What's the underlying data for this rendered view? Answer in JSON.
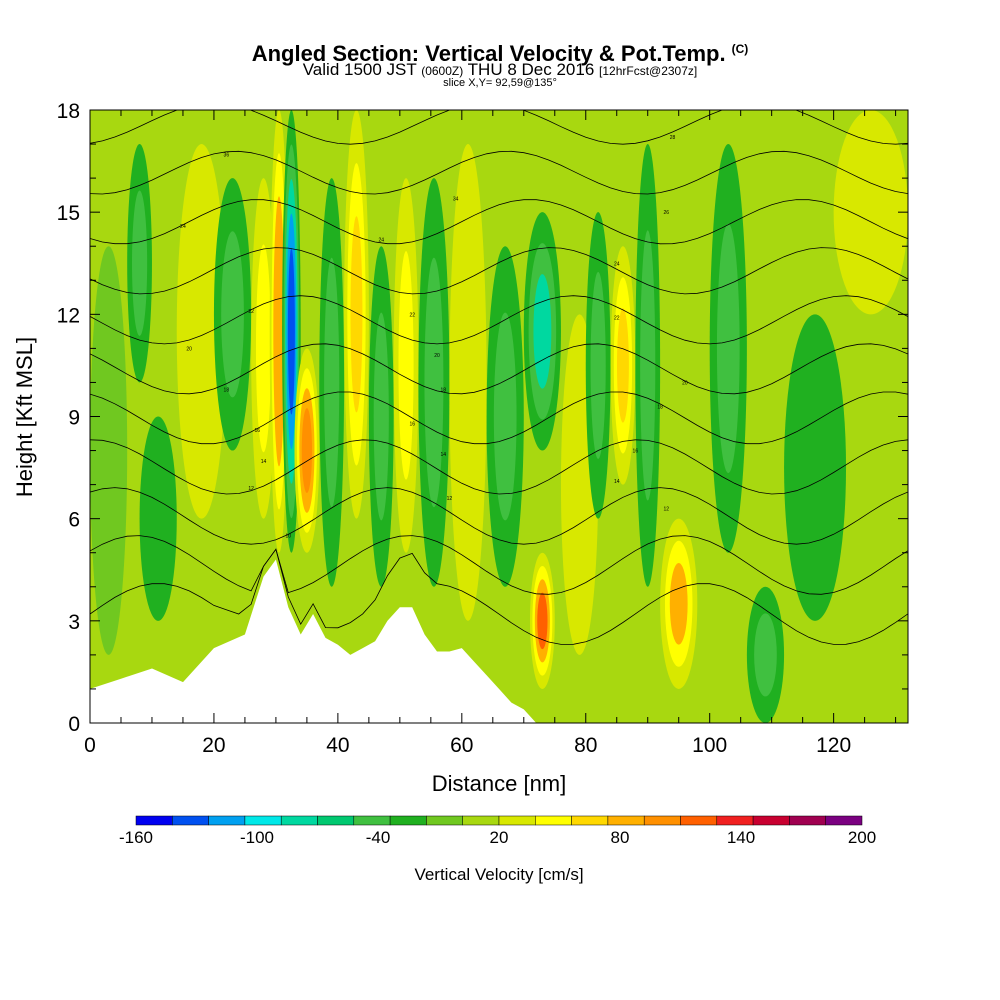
{
  "title": {
    "main": "Angled Section: Vertical Velocity & Pot.Temp.",
    "main_sup": "(C)",
    "valid_a": "Valid 1500 JST",
    "valid_b": "(0600Z)",
    "valid_c": "THU 8 Dec 2016",
    "valid_d": "[12hrFcst@2307z]",
    "slice": "slice X,Y= 92,59@135°"
  },
  "chart_data": {
    "type": "heatmap",
    "xlabel": "Distance [nm]",
    "ylabel": "Height [Kft MSL]",
    "xlim": [
      0,
      132
    ],
    "ylim": [
      0,
      18
    ],
    "xticks": [
      0,
      20,
      40,
      60,
      80,
      100,
      120
    ],
    "yticks": [
      0,
      3,
      6,
      9,
      12,
      15,
      18
    ],
    "colorbar": {
      "title": "Vertical Velocity [cm/s]",
      "labels": [
        "-160",
        "-100",
        "-40",
        "20",
        "80",
        "140",
        "200"
      ],
      "label_values": [
        -160,
        -100,
        -40,
        20,
        80,
        140,
        200
      ],
      "range": [
        -160,
        200
      ],
      "colors": [
        "#0000f0",
        "#0050f0",
        "#00a0f0",
        "#00e8e8",
        "#00d8a0",
        "#00c870",
        "#40c040",
        "#20b020",
        "#70c820",
        "#a8d810",
        "#d8e800",
        "#ffff00",
        "#ffd800",
        "#ffb000",
        "#ff9000",
        "#ff6000",
        "#f02020",
        "#c80030",
        "#a00050",
        "#7a0080"
      ]
    },
    "terrain": {
      "x": [
        0,
        5,
        10,
        15,
        20,
        25,
        28,
        30,
        32,
        34,
        36,
        38,
        40,
        42,
        44,
        46,
        48,
        50,
        52,
        54,
        56,
        58,
        60,
        62,
        64,
        66,
        68,
        70,
        72
      ],
      "height": [
        1.0,
        1.3,
        1.6,
        1.2,
        2.2,
        2.6,
        4.3,
        4.8,
        3.4,
        2.6,
        3.2,
        2.5,
        2.3,
        2.0,
        2.2,
        2.4,
        3.0,
        3.4,
        3.4,
        2.6,
        2.1,
        2.1,
        2.2,
        1.8,
        1.4,
        1.0,
        0.6,
        0.4,
        0.0
      ]
    },
    "wvel_cells": [
      {
        "x": [
          0,
          6
        ],
        "y": [
          2,
          14
        ],
        "w": -10
      },
      {
        "x": [
          6,
          10
        ],
        "y": [
          10,
          17
        ],
        "w": -40
      },
      {
        "x": [
          8,
          14
        ],
        "y": [
          3,
          9
        ],
        "w": -30
      },
      {
        "x": [
          14,
          22
        ],
        "y": [
          6,
          17
        ],
        "w": 30
      },
      {
        "x": [
          20,
          26
        ],
        "y": [
          8,
          16
        ],
        "w": -50
      },
      {
        "x": [
          26,
          30
        ],
        "y": [
          6,
          16
        ],
        "w": 50
      },
      {
        "x": [
          29,
          32
        ],
        "y": [
          5,
          18
        ],
        "w": 90
      },
      {
        "x": [
          31,
          34
        ],
        "y": [
          5,
          18
        ],
        "w": -130
      },
      {
        "x": [
          33,
          37
        ],
        "y": [
          5,
          11
        ],
        "w": 100
      },
      {
        "x": [
          37,
          41
        ],
        "y": [
          4,
          16
        ],
        "w": -40
      },
      {
        "x": [
          41,
          45
        ],
        "y": [
          6,
          18
        ],
        "w": 70
      },
      {
        "x": [
          45,
          49
        ],
        "y": [
          4,
          14
        ],
        "w": -45
      },
      {
        "x": [
          49,
          53
        ],
        "y": [
          5,
          16
        ],
        "w": 40
      },
      {
        "x": [
          53,
          58
        ],
        "y": [
          4,
          16
        ],
        "w": -40
      },
      {
        "x": [
          58,
          64
        ],
        "y": [
          3,
          17
        ],
        "w": 30
      },
      {
        "x": [
          64,
          70
        ],
        "y": [
          4,
          14
        ],
        "w": -40
      },
      {
        "x": [
          70,
          76
        ],
        "y": [
          8,
          15
        ],
        "w": -80
      },
      {
        "x": [
          71,
          75
        ],
        "y": [
          1,
          5
        ],
        "w": 110
      },
      {
        "x": [
          76,
          82
        ],
        "y": [
          2,
          12
        ],
        "w": 30
      },
      {
        "x": [
          80,
          84
        ],
        "y": [
          6,
          15
        ],
        "w": -40
      },
      {
        "x": [
          84,
          88
        ],
        "y": [
          7,
          14
        ],
        "w": 60
      },
      {
        "x": [
          88,
          92
        ],
        "y": [
          4,
          17
        ],
        "w": -40
      },
      {
        "x": [
          92,
          98
        ],
        "y": [
          1,
          6
        ],
        "w": 80
      },
      {
        "x": [
          100,
          106
        ],
        "y": [
          5,
          17
        ],
        "w": -45
      },
      {
        "x": [
          106,
          112
        ],
        "y": [
          0,
          4
        ],
        "w": -40
      },
      {
        "x": [
          112,
          122
        ],
        "y": [
          3,
          12
        ],
        "w": -20
      },
      {
        "x": [
          120,
          132
        ],
        "y": [
          12,
          18
        ],
        "w": 30
      }
    ],
    "theta_levels": [
      0,
      2,
      4,
      6,
      8,
      10,
      12,
      14,
      16,
      18,
      20,
      22,
      24,
      26,
      28,
      30,
      32,
      34,
      36,
      38,
      40
    ],
    "contour_labels": [
      {
        "text": "36",
        "x": 22,
        "y": 16.7
      },
      {
        "text": "34",
        "x": 59,
        "y": 15.4
      },
      {
        "text": "28",
        "x": 94,
        "y": 17.2
      },
      {
        "text": "26",
        "x": 93,
        "y": 15.0
      },
      {
        "text": "24",
        "x": 15,
        "y": 14.6
      },
      {
        "text": "24",
        "x": 47,
        "y": 14.2
      },
      {
        "text": "24",
        "x": 85,
        "y": 13.5
      },
      {
        "text": "22",
        "x": 26,
        "y": 12.1
      },
      {
        "text": "22",
        "x": 52,
        "y": 12.0
      },
      {
        "text": "22",
        "x": 85,
        "y": 11.9
      },
      {
        "text": "20",
        "x": 16,
        "y": 11.0
      },
      {
        "text": "20",
        "x": 56,
        "y": 10.8
      },
      {
        "text": "20",
        "x": 96,
        "y": 10.0
      },
      {
        "text": "18",
        "x": 22,
        "y": 9.8
      },
      {
        "text": "18",
        "x": 57,
        "y": 9.8
      },
      {
        "text": "18",
        "x": 92,
        "y": 9.3
      },
      {
        "text": "16",
        "x": 27,
        "y": 8.6
      },
      {
        "text": "16",
        "x": 52,
        "y": 8.8
      },
      {
        "text": "16",
        "x": 88,
        "y": 8.0
      },
      {
        "text": "14",
        "x": 28,
        "y": 7.7
      },
      {
        "text": "14",
        "x": 57,
        "y": 7.9
      },
      {
        "text": "14",
        "x": 85,
        "y": 7.1
      },
      {
        "text": "12",
        "x": 26,
        "y": 6.9
      },
      {
        "text": "12",
        "x": 58,
        "y": 6.6
      },
      {
        "text": "12",
        "x": 93,
        "y": 6.3
      },
      {
        "text": "10",
        "x": 32,
        "y": 5.5
      }
    ]
  }
}
